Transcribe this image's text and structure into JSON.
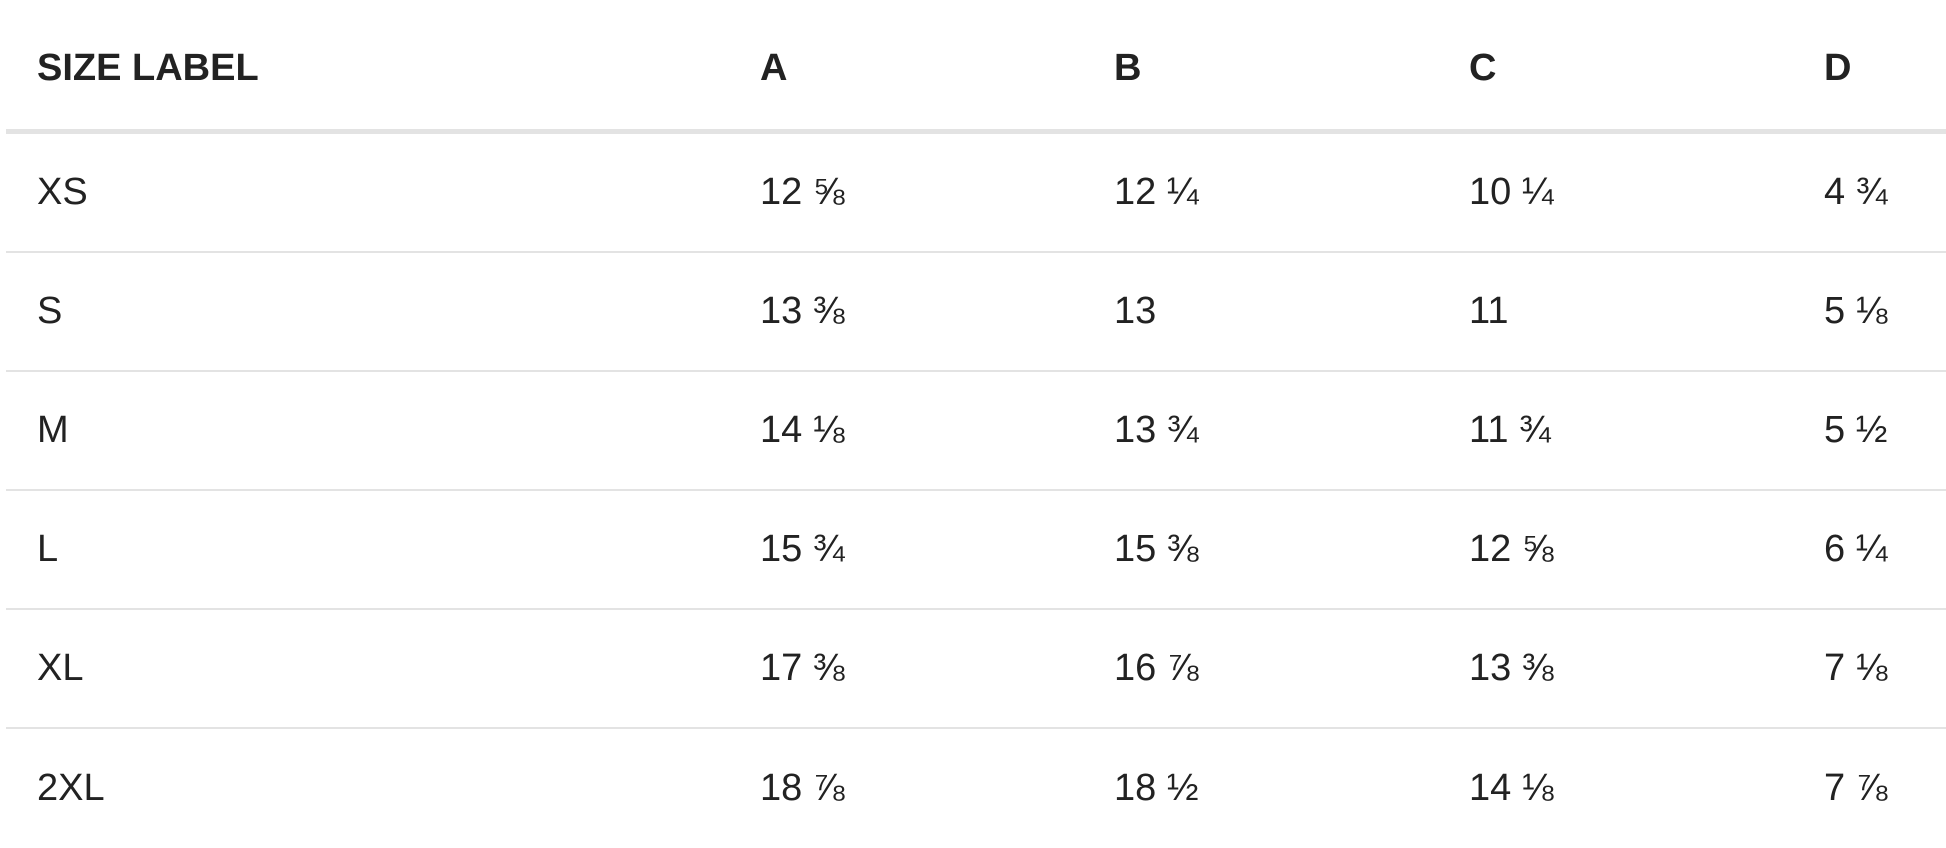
{
  "table": {
    "headers": [
      "SIZE LABEL",
      "A",
      "B",
      "C",
      "D"
    ],
    "rows": [
      [
        "XS",
        "12 ⅝",
        "12 ¼",
        "10 ¼",
        "4 ¾"
      ],
      [
        "S",
        "13 ⅜",
        "13",
        "11",
        "5 ⅛"
      ],
      [
        "M",
        "14 ⅛",
        "13 ¾",
        "11 ¾",
        "5 ½"
      ],
      [
        "L",
        "15 ¾",
        "15 ⅜",
        "12 ⅝",
        "6 ¼"
      ],
      [
        "XL",
        "17 ⅜",
        "16 ⅞",
        "13 ⅜",
        "7 ⅛"
      ],
      [
        "2XL",
        "18 ⅞",
        "18 ½",
        "14 ⅛",
        "7 ⅞"
      ]
    ]
  }
}
